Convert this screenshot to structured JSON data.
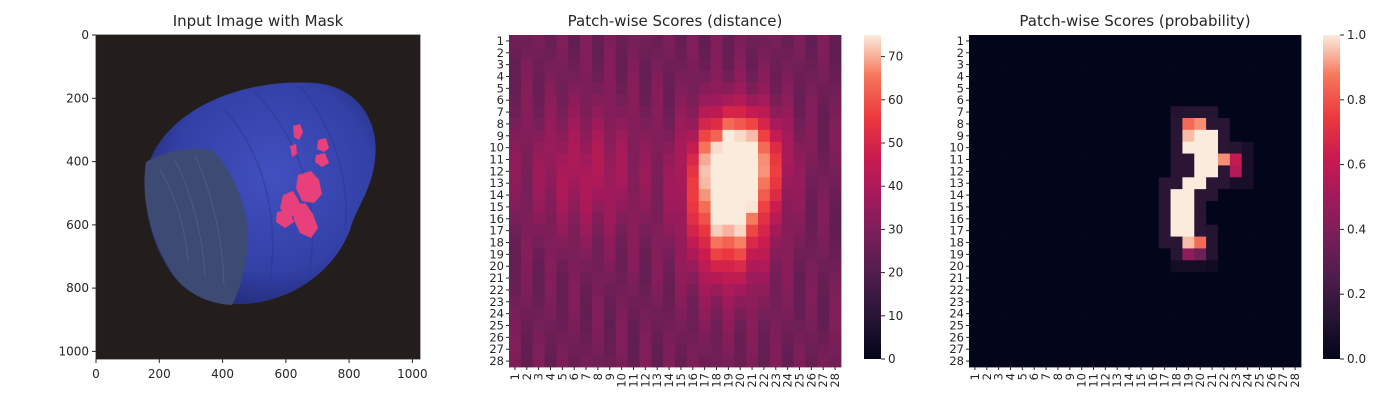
{
  "figure": {
    "panel_1_title": "Input Image with Mask",
    "panel_2_title": "Patch-wise Scores (distance)",
    "panel_3_title": "Patch-wise Scores (probability)"
  },
  "chart_data": [
    {
      "type": "image",
      "title": "Input Image with Mask",
      "content": "hazelnut photo with red anomaly mask overlay",
      "xlim": [
        0,
        1024
      ],
      "ylim": [
        1024,
        0
      ],
      "x_ticks": [
        0,
        200,
        400,
        600,
        800,
        1000
      ],
      "y_ticks": [
        0,
        200,
        400,
        600,
        800,
        1000
      ],
      "colors": {
        "background": "#231d1c",
        "nut": "#3440a8",
        "mask": "#e8407a"
      }
    },
    {
      "type": "heatmap",
      "title": "Patch-wise Scores (distance)",
      "rows": 28,
      "cols": 28,
      "row_labels": [
        "1",
        "2",
        "3",
        "4",
        "5",
        "6",
        "7",
        "8",
        "9",
        "10",
        "11",
        "12",
        "13",
        "14",
        "15",
        "16",
        "17",
        "18",
        "19",
        "20",
        "21",
        "22",
        "23",
        "24",
        "25",
        "26",
        "27",
        "28"
      ],
      "col_labels": [
        "1",
        "2",
        "3",
        "4",
        "5",
        "6",
        "7",
        "8",
        "9",
        "10",
        "11",
        "12",
        "13",
        "14",
        "15",
        "16",
        "17",
        "18",
        "19",
        "20",
        "21",
        "22",
        "23",
        "24",
        "25",
        "26",
        "27",
        "28"
      ],
      "colorbar_range": [
        0,
        75
      ],
      "colorbar_ticks": [
        0,
        10,
        20,
        30,
        40,
        50,
        60,
        70
      ],
      "background_value": 27,
      "hot_spots": [
        {
          "row": 15,
          "col": 19,
          "peak": 75,
          "sigma_row": 4.2,
          "sigma_col": 2.3
        },
        {
          "row": 11,
          "col": 20,
          "peak": 70,
          "sigma_row": 2.8,
          "sigma_col": 2.4
        },
        {
          "row": 12,
          "col": 7,
          "peak": 40,
          "sigma_row": 3.8,
          "sigma_col": 3.6
        }
      ]
    },
    {
      "type": "heatmap",
      "title": "Patch-wise Scores (probability)",
      "rows": 28,
      "cols": 28,
      "row_labels": [
        "1",
        "2",
        "3",
        "4",
        "5",
        "6",
        "7",
        "8",
        "9",
        "10",
        "11",
        "12",
        "13",
        "14",
        "15",
        "16",
        "17",
        "18",
        "19",
        "20",
        "21",
        "22",
        "23",
        "24",
        "25",
        "26",
        "27",
        "28"
      ],
      "col_labels": [
        "1",
        "2",
        "3",
        "4",
        "5",
        "6",
        "7",
        "8",
        "9",
        "10",
        "11",
        "12",
        "13",
        "14",
        "15",
        "16",
        "17",
        "18",
        "19",
        "20",
        "21",
        "22",
        "23",
        "24",
        "25",
        "26",
        "27",
        "28"
      ],
      "colorbar_range": [
        0,
        1
      ],
      "colorbar_ticks": [
        0.0,
        0.2,
        0.4,
        0.6,
        0.8,
        1.0
      ],
      "hot_cells": [
        {
          "row": 8,
          "col": 19,
          "value": 0.85
        },
        {
          "row": 8,
          "col": 20,
          "value": 0.9
        },
        {
          "row": 9,
          "col": 19,
          "value": 0.95
        },
        {
          "row": 9,
          "col": 20,
          "value": 1.0
        },
        {
          "row": 9,
          "col": 21,
          "value": 1.0
        },
        {
          "row": 10,
          "col": 19,
          "value": 1.0
        },
        {
          "row": 10,
          "col": 20,
          "value": 1.0
        },
        {
          "row": 10,
          "col": 21,
          "value": 1.0
        },
        {
          "row": 11,
          "col": 20,
          "value": 1.0
        },
        {
          "row": 11,
          "col": 21,
          "value": 1.0
        },
        {
          "row": 11,
          "col": 22,
          "value": 0.9
        },
        {
          "row": 11,
          "col": 23,
          "value": 0.6
        },
        {
          "row": 12,
          "col": 20,
          "value": 1.0
        },
        {
          "row": 12,
          "col": 21,
          "value": 1.0
        },
        {
          "row": 12,
          "col": 23,
          "value": 0.55
        },
        {
          "row": 13,
          "col": 19,
          "value": 1.0
        },
        {
          "row": 13,
          "col": 20,
          "value": 1.0
        },
        {
          "row": 14,
          "col": 18,
          "value": 1.0
        },
        {
          "row": 14,
          "col": 19,
          "value": 1.0
        },
        {
          "row": 15,
          "col": 18,
          "value": 1.0
        },
        {
          "row": 15,
          "col": 19,
          "value": 1.0
        },
        {
          "row": 16,
          "col": 18,
          "value": 1.0
        },
        {
          "row": 16,
          "col": 19,
          "value": 1.0
        },
        {
          "row": 17,
          "col": 18,
          "value": 1.0
        },
        {
          "row": 17,
          "col": 19,
          "value": 1.0
        },
        {
          "row": 18,
          "col": 19,
          "value": 0.95
        },
        {
          "row": 18,
          "col": 20,
          "value": 0.85
        },
        {
          "row": 19,
          "col": 19,
          "value": 0.45
        },
        {
          "row": 19,
          "col": 20,
          "value": 0.35
        }
      ]
    }
  ]
}
